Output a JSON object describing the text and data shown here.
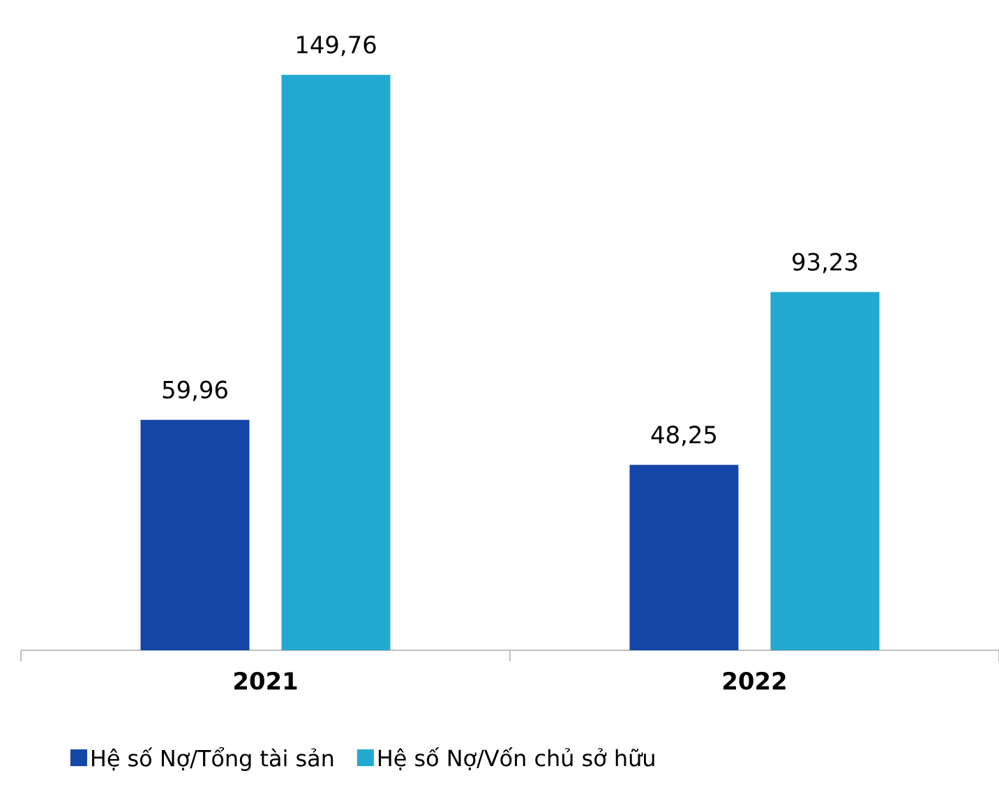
{
  "chart_data": {
    "type": "bar",
    "categories": [
      "2021",
      "2022"
    ],
    "series": [
      {
        "name": "Hệ số Nợ/Tổng tài sản",
        "color": "#1446a8",
        "values": [
          59.96,
          48.25
        ],
        "value_labels": [
          "59,96",
          "48,25"
        ]
      },
      {
        "name": "Hệ số Nợ/Vốn chủ sở hữu",
        "color": "#22a9cf",
        "values": [
          149.76,
          93.23
        ],
        "value_labels": [
          "149,76",
          "93,23"
        ]
      }
    ],
    "legend": "bottom"
  }
}
